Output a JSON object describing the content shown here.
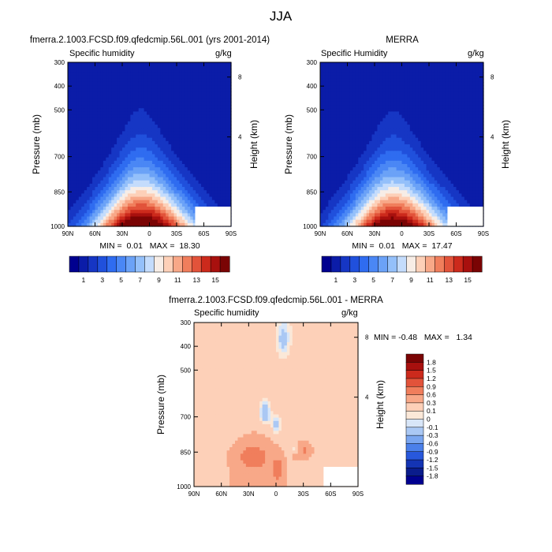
{
  "figure_title": "JJA",
  "chart_data": [
    {
      "type": "heatmap",
      "id": "model",
      "title": "fmerra.2.1003.FCSD.f09.qfedcmip.56L.001 (yrs 2001-2014)",
      "left_label": "Specific humidity",
      "right_label": "g/kg",
      "ylabel": "Pressure (mb)",
      "ylabel_right": "Height (km)",
      "x_ticks": [
        "90N",
        "60N",
        "30N",
        "0",
        "30S",
        "60S",
        "90S"
      ],
      "y_ticks": [
        "300",
        "400",
        "500",
        "700",
        "850",
        "1000"
      ],
      "y_ticks_right": [
        "8",
        "4"
      ],
      "xlim": [
        90,
        -90
      ],
      "ylim": [
        1000,
        300
      ],
      "stats": "MIN =  0.01   MAX =  18.30",
      "min": 0.01,
      "max": 18.3,
      "peak_lat": 10
    },
    {
      "type": "heatmap",
      "id": "merra",
      "title": "MERRA",
      "left_label": "Specific Humidity",
      "right_label": "g/kg",
      "ylabel": "Pressure (mb)",
      "ylabel_right": "Height (km)",
      "x_ticks": [
        "90N",
        "60N",
        "30N",
        "0",
        "30S",
        "60S",
        "90S"
      ],
      "y_ticks": [
        "300",
        "400",
        "500",
        "700",
        "850",
        "1000"
      ],
      "y_ticks_right": [
        "8",
        "4"
      ],
      "xlim": [
        90,
        -90
      ],
      "ylim": [
        1000,
        300
      ],
      "stats": "MIN =  0.01   MAX =  17.47",
      "min": 0.01,
      "max": 17.47,
      "peak_lat": 10
    },
    {
      "type": "heatmap",
      "id": "diff",
      "title": "fmerra.2.1003.FCSD.f09.qfedcmip.56L.001 - MERRA",
      "left_label": "Specific humidity",
      "right_label": "g/kg",
      "ylabel": "Pressure (mb)",
      "ylabel_right": "Height (km)",
      "x_ticks": [
        "90N",
        "60N",
        "30N",
        "0",
        "30S",
        "60S",
        "90S"
      ],
      "y_ticks": [
        "300",
        "400",
        "500",
        "700",
        "850",
        "1000"
      ],
      "y_ticks_right": [
        "8",
        "4"
      ],
      "xlim": [
        90,
        -90
      ],
      "ylim": [
        1000,
        300
      ],
      "stats": "MIN = -0.48   MAX =   1.34",
      "min": -0.48,
      "max": 1.34
    }
  ],
  "colorbar_top": {
    "labels": [
      "1",
      "3",
      "5",
      "7",
      "9",
      "11",
      "13",
      "15"
    ],
    "levels": [
      0,
      1,
      2,
      3,
      4,
      5,
      6,
      7,
      8,
      9,
      10,
      11,
      12,
      13,
      14,
      15,
      16
    ],
    "colors": [
      "#00008f",
      "#0b1ca8",
      "#1636c4",
      "#2050dc",
      "#2f6cf0",
      "#4a87f5",
      "#6ba2f7",
      "#94c0fa",
      "#c4dcfc",
      "#f7ede6",
      "#fdd0b8",
      "#f8a888",
      "#f07e5c",
      "#e2533a",
      "#cc2a1c",
      "#a8100e",
      "#7a0404"
    ]
  },
  "colorbar_diff": {
    "labels": [
      "1.8",
      "1.5",
      "1.2",
      "0.9",
      "0.6",
      "0.3",
      "0.1",
      "0",
      "-0.1",
      "-0.3",
      "-0.6",
      "-0.9",
      "-1.2",
      "-1.5",
      "-1.8"
    ],
    "levels": [
      -1.8,
      -1.5,
      -1.2,
      -0.9,
      -0.6,
      -0.3,
      -0.1,
      0,
      0.1,
      0.3,
      0.6,
      0.9,
      1.2,
      1.5,
      1.8
    ],
    "colors": [
      "#7a0404",
      "#a8100e",
      "#cc2a1c",
      "#e2533a",
      "#f07e5c",
      "#f8a888",
      "#fdd0b8",
      "#fbe8d8",
      "#d8e6f8",
      "#aac8f4",
      "#7aa6f0",
      "#4b80ea",
      "#2858dc",
      "#1434b4",
      "#0a1c8c",
      "#00008f"
    ]
  }
}
